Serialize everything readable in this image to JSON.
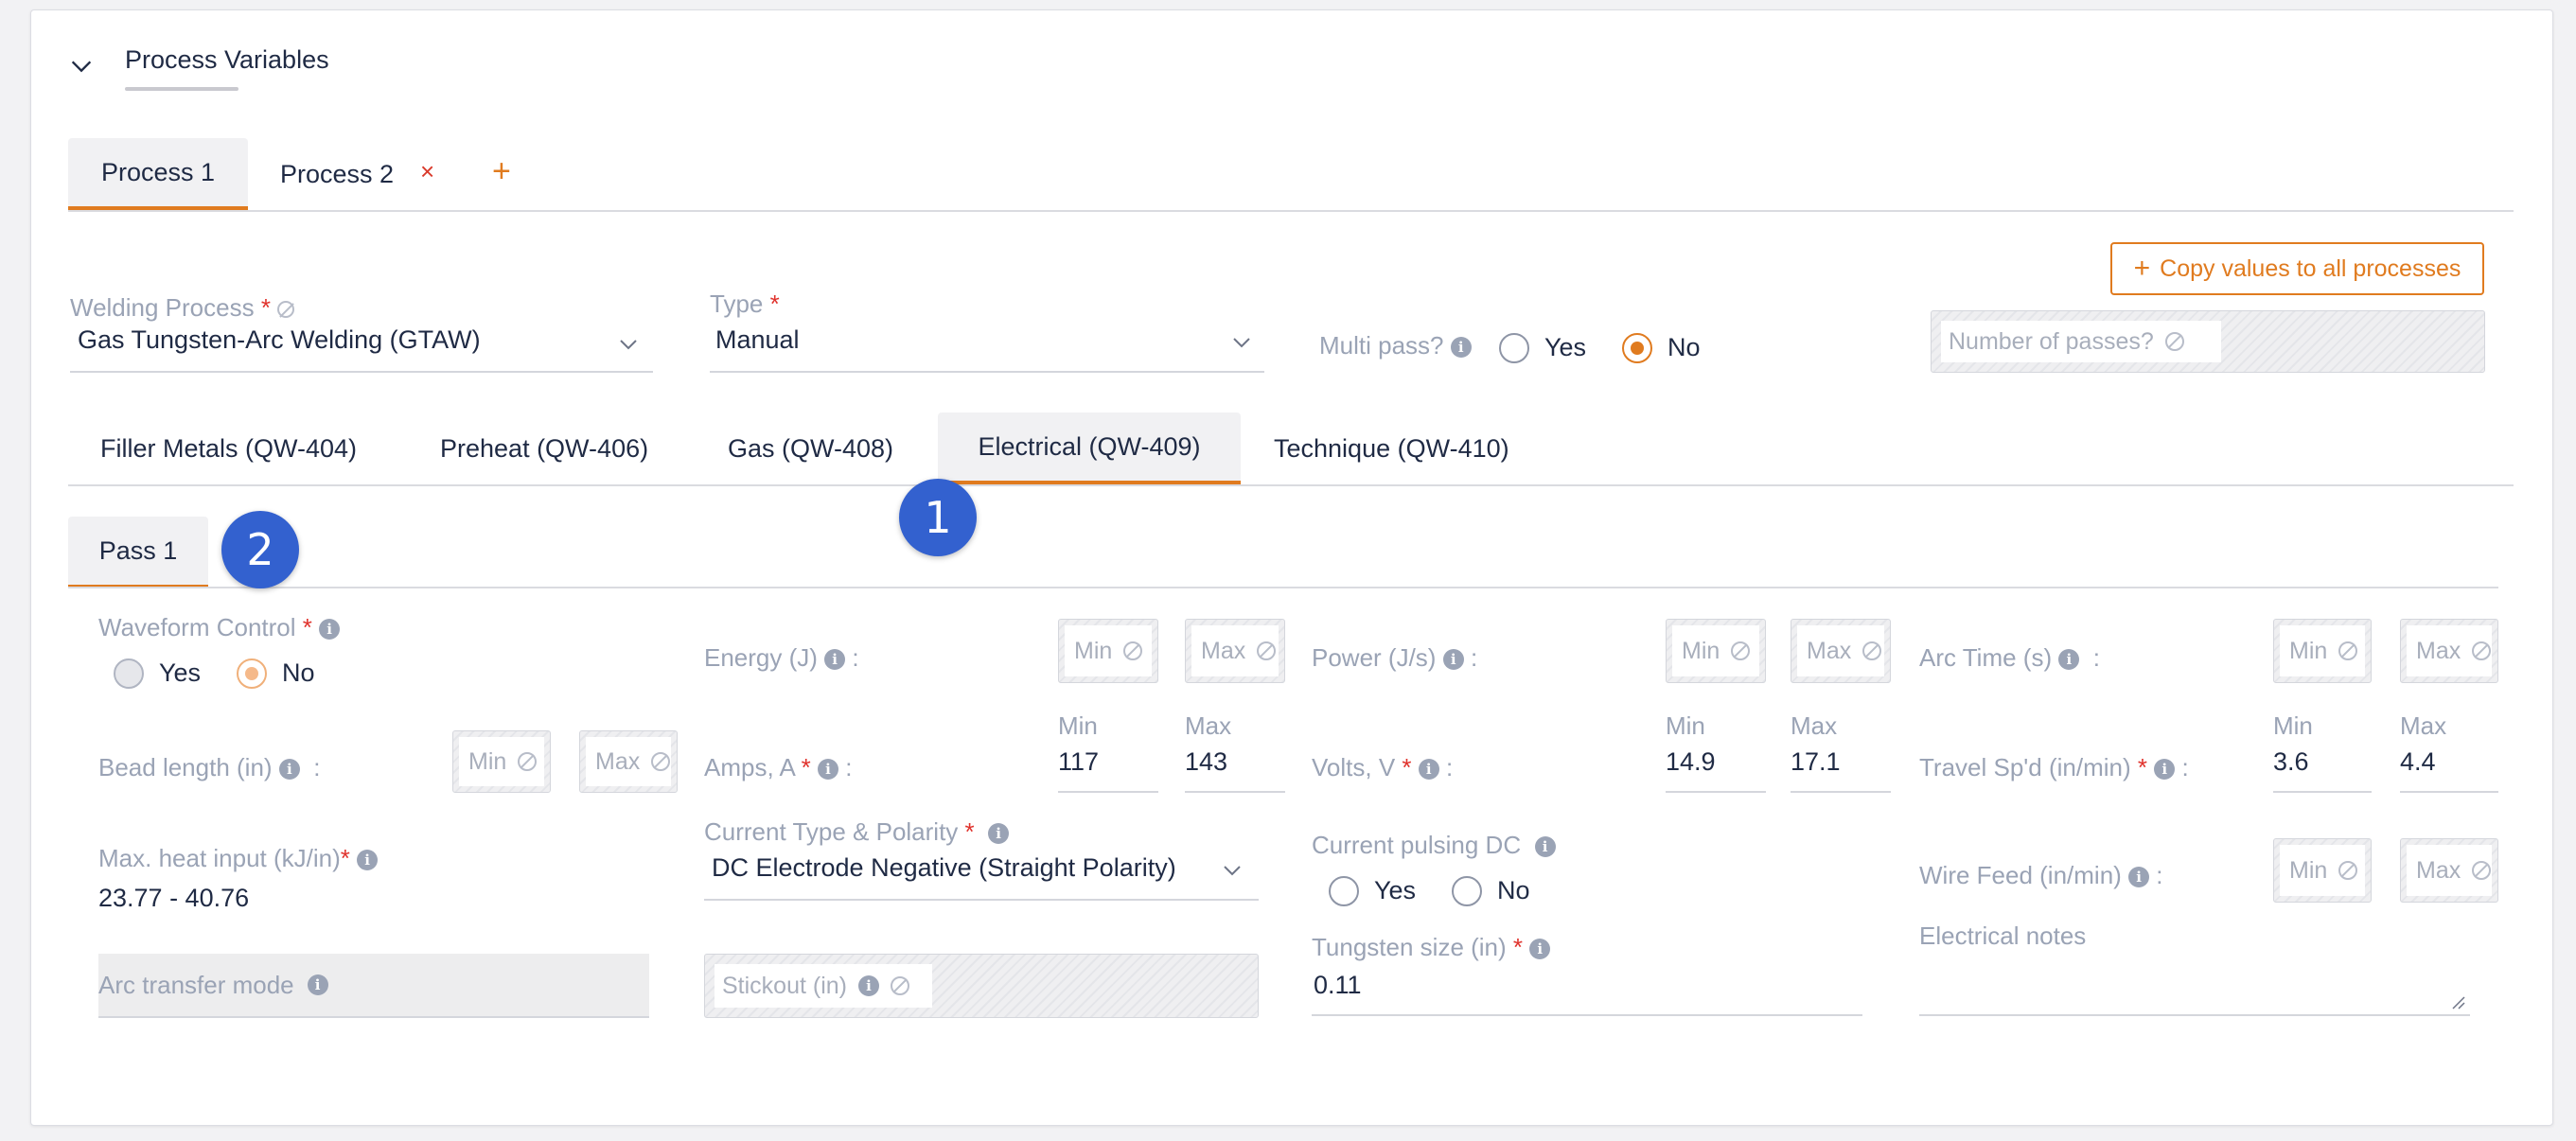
{
  "section": {
    "title": "Process Variables"
  },
  "process_tabs": [
    {
      "label": "Process 1",
      "active": true
    },
    {
      "label": "Process 2",
      "closable": true
    }
  ],
  "process_tab_close_symbol": "×",
  "process_tab_add_symbol": "+",
  "copy_button": {
    "icon": "+",
    "label": "Copy values to all processes"
  },
  "welding_process": {
    "label": "Welding Process",
    "required_mark": "*",
    "value": "Gas Tungsten-Arc Welding (GTAW)"
  },
  "type": {
    "label": "Type",
    "required_mark": "*",
    "value": "Manual"
  },
  "multi_pass": {
    "label": "Multi pass?",
    "options": [
      "Yes",
      "No"
    ],
    "selected": "No"
  },
  "number_of_passes": {
    "placeholder": "Number of passes?"
  },
  "category_tabs": [
    {
      "label": "Filler Metals (QW-404)"
    },
    {
      "label": "Preheat (QW-406)"
    },
    {
      "label": "Gas (QW-408)"
    },
    {
      "label": "Electrical (QW-409)",
      "active": true
    },
    {
      "label": "Technique (QW-410)"
    }
  ],
  "pass_tabs": [
    {
      "label": "Pass 1",
      "active": true
    }
  ],
  "markers": [
    "1",
    "2"
  ],
  "fields": {
    "waveform_control": {
      "label": "Waveform Control",
      "required_mark": "*",
      "options": [
        "Yes",
        "No"
      ],
      "selected": "No"
    },
    "energy": {
      "label": "Energy (J)",
      "colon": ":",
      "min_placeholder": "Min",
      "max_placeholder": "Max"
    },
    "power": {
      "label": "Power (J/s)",
      "colon": ":",
      "min_placeholder": "Min",
      "max_placeholder": "Max"
    },
    "arc_time": {
      "label": "Arc Time (s)",
      "colon": ":",
      "min_placeholder": "Min",
      "max_placeholder": "Max"
    },
    "bead_length": {
      "label": "Bead length (in)",
      "colon": ":",
      "min_placeholder": "Min",
      "max_placeholder": "Max"
    },
    "amps": {
      "label": "Amps, A",
      "required_mark": "*",
      "colon": ":",
      "min_label": "Min",
      "max_label": "Max",
      "min": "117",
      "max": "143"
    },
    "volts": {
      "label": "Volts, V",
      "required_mark": "*",
      "colon": ":",
      "min_label": "Min",
      "max_label": "Max",
      "min": "14.9",
      "max": "17.1"
    },
    "travel_speed": {
      "label": "Travel Sp'd (in/min)",
      "required_mark": "*",
      "colon": ":",
      "min_label": "Min",
      "max_label": "Max",
      "min": "3.6",
      "max": "4.4"
    },
    "max_heat_input": {
      "label": "Max. heat input (kJ/in)",
      "required_mark": "*",
      "value": "23.77 - 40.76"
    },
    "current_type_polarity": {
      "label": "Current Type & Polarity",
      "required_mark": "*",
      "value": "DC Electrode Negative (Straight Polarity)"
    },
    "current_pulsing_dc": {
      "label": "Current pulsing DC",
      "options": [
        "Yes",
        "No"
      ],
      "selected": ""
    },
    "wire_feed": {
      "label": "Wire Feed (in/min)",
      "colon": ":",
      "min_placeholder": "Min",
      "max_placeholder": "Max"
    },
    "arc_transfer_mode": {
      "label": "Arc transfer mode"
    },
    "stickout": {
      "label": "Stickout (in)"
    },
    "tungsten_size": {
      "label": "Tungsten size (in)",
      "required_mark": "*",
      "value": "0.11"
    },
    "electrical_notes": {
      "label": "Electrical notes",
      "value": ""
    }
  },
  "colors": {
    "accent": "#e07b1f",
    "required": "#e0322c",
    "marker": "#3361cf",
    "text": "#1f2a44",
    "muted": "#9aa3b5"
  }
}
